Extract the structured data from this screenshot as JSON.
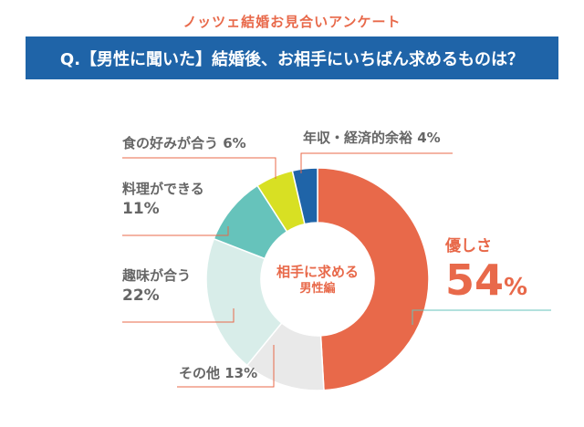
{
  "header": {
    "survey_title": "ノッツェ結婚お見合いアンケート",
    "question": "Q.【男性に聞いた】結婚後、お相手にいちばん求めるものは？"
  },
  "chart_data": {
    "type": "pie",
    "title": "相手に求める",
    "subtitle": "男性編",
    "unit": "%",
    "slices": [
      {
        "name": "優しさ",
        "value": 54,
        "color": "#e8694a"
      },
      {
        "name": "その他",
        "value": 13,
        "color": "#e9e9e9"
      },
      {
        "name": "趣味が合う",
        "value": 22,
        "color": "#d8ede9"
      },
      {
        "name": "料理ができる",
        "value": 11,
        "color": "#66c3bb"
      },
      {
        "name": "食の好みが合う",
        "value": 6,
        "color": "#d8e023"
      },
      {
        "name": "年収・経済的余裕",
        "value": 4,
        "color": "#1f64a8"
      }
    ]
  },
  "labels": {
    "kindness": {
      "name": "優しさ",
      "value": "54",
      "unit": "%"
    },
    "other": {
      "text": "その他 13%"
    },
    "hobby": {
      "name": "趣味が合う",
      "value": "22%"
    },
    "cooking": {
      "name": "料理ができる",
      "value": "11%"
    },
    "food": {
      "text": "食の好みが合う 6%"
    },
    "income": {
      "text": "年収・経済的余裕 4%"
    }
  }
}
